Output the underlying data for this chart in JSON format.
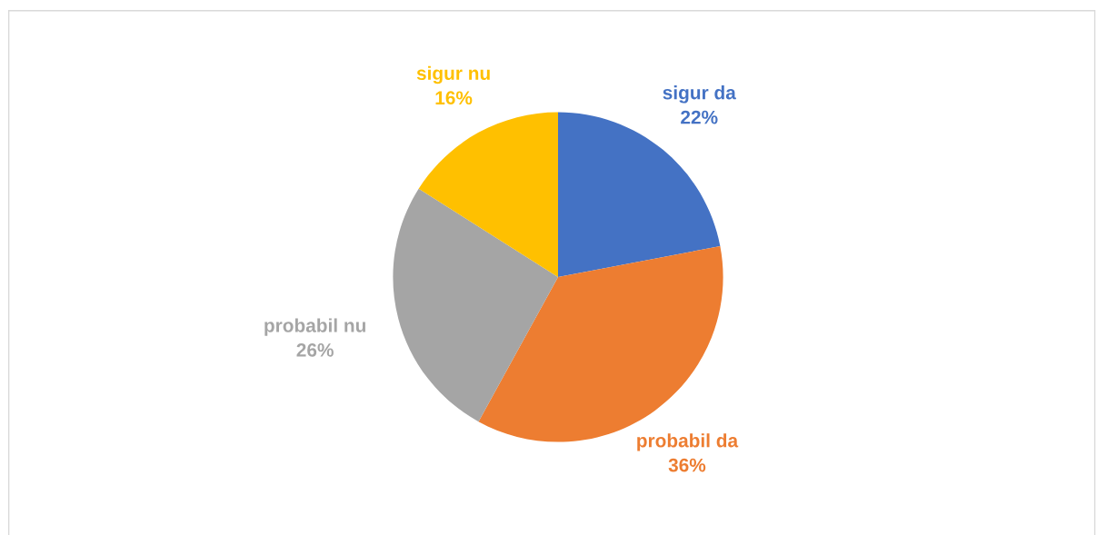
{
  "chart_data": {
    "type": "pie",
    "categories": [
      "sigur da",
      "probabil da",
      "probabil nu",
      "sigur nu"
    ],
    "values": [
      22,
      36,
      26,
      16
    ],
    "colors": [
      "#4472c4",
      "#ed7d31",
      "#a5a5a5",
      "#ffc000"
    ],
    "value_labels": [
      "22%",
      "36%",
      "26%",
      "16%"
    ]
  }
}
